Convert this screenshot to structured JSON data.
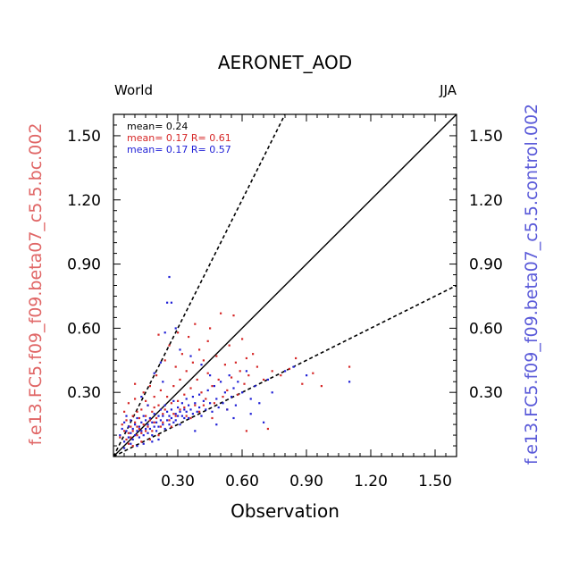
{
  "chart_data": {
    "type": "scatter",
    "title": "AERONET_AOD",
    "subtitle_left": "World",
    "subtitle_right": "JJA",
    "xlabel": "Observation",
    "ylabel_left": "f.e13.FC5.f09_f09.beta07_c5.5.bc.002",
    "ylabel_right": "f.e13.FC5.f09_f09.beta07_c5.5.control.002",
    "xlim": [
      0.0,
      1.6
    ],
    "ylim": [
      0.0,
      1.6
    ],
    "xticks": [
      "0.30",
      "0.60",
      "0.90",
      "1.20",
      "1.50"
    ],
    "yticks": [
      "0.30",
      "0.60",
      "0.90",
      "1.20",
      "1.50"
    ],
    "reference_lines": [
      {
        "kind": "1:1",
        "slope": 1.0,
        "style": "solid"
      },
      {
        "kind": "2:1",
        "slope": 2.0,
        "style": "dashed"
      },
      {
        "kind": "1:2",
        "slope": 0.5,
        "style": "dashed"
      }
    ],
    "annotations": [
      {
        "text": "mean= 0.24",
        "color": "#000000"
      },
      {
        "text": "mean= 0.17 R= 0.61",
        "color": "#d62828"
      },
      {
        "text": "mean= 0.17 R= 0.57",
        "color": "#1f1fd6"
      }
    ],
    "series": [
      {
        "color": "#d62828",
        "points": [
          [
            0.03,
            0.09
          ],
          [
            0.04,
            0.15
          ],
          [
            0.05,
            0.12
          ],
          [
            0.05,
            0.21
          ],
          [
            0.06,
            0.08
          ],
          [
            0.06,
            0.17
          ],
          [
            0.07,
            0.11
          ],
          [
            0.07,
            0.25
          ],
          [
            0.08,
            0.14
          ],
          [
            0.08,
            0.09
          ],
          [
            0.09,
            0.19
          ],
          [
            0.09,
            0.12
          ],
          [
            0.1,
            0.16
          ],
          [
            0.1,
            0.27
          ],
          [
            0.11,
            0.1
          ],
          [
            0.11,
            0.14
          ],
          [
            0.12,
            0.18
          ],
          [
            0.12,
            0.13
          ],
          [
            0.13,
            0.22
          ],
          [
            0.13,
            0.11
          ],
          [
            0.14,
            0.15
          ],
          [
            0.14,
            0.3
          ],
          [
            0.15,
            0.12
          ],
          [
            0.15,
            0.19
          ],
          [
            0.16,
            0.24
          ],
          [
            0.16,
            0.14
          ],
          [
            0.17,
            0.17
          ],
          [
            0.17,
            0.33
          ],
          [
            0.18,
            0.12
          ],
          [
            0.18,
            0.21
          ],
          [
            0.19,
            0.28
          ],
          [
            0.19,
            0.16
          ],
          [
            0.2,
            0.38
          ],
          [
            0.2,
            0.18
          ],
          [
            0.21,
            0.24
          ],
          [
            0.22,
            0.14
          ],
          [
            0.22,
            0.31
          ],
          [
            0.23,
            0.2
          ],
          [
            0.24,
            0.45
          ],
          [
            0.24,
            0.22
          ],
          [
            0.25,
            0.28
          ],
          [
            0.26,
            0.17
          ],
          [
            0.26,
            0.52
          ],
          [
            0.27,
            0.25
          ],
          [
            0.28,
            0.33
          ],
          [
            0.28,
            0.2
          ],
          [
            0.29,
            0.42
          ],
          [
            0.3,
            0.26
          ],
          [
            0.31,
            0.36
          ],
          [
            0.31,
            0.22
          ],
          [
            0.32,
            0.48
          ],
          [
            0.33,
            0.29
          ],
          [
            0.34,
            0.4
          ],
          [
            0.34,
            0.19
          ],
          [
            0.35,
            0.56
          ],
          [
            0.36,
            0.32
          ],
          [
            0.37,
            0.44
          ],
          [
            0.38,
            0.24
          ],
          [
            0.39,
            0.36
          ],
          [
            0.4,
            0.5
          ],
          [
            0.4,
            0.21
          ],
          [
            0.41,
            0.3
          ],
          [
            0.42,
            0.45
          ],
          [
            0.43,
            0.27
          ],
          [
            0.44,
            0.39
          ],
          [
            0.45,
            0.6
          ],
          [
            0.46,
            0.33
          ],
          [
            0.47,
            0.25
          ],
          [
            0.48,
            0.47
          ],
          [
            0.49,
            0.36
          ],
          [
            0.5,
            0.67
          ],
          [
            0.51,
            0.28
          ],
          [
            0.52,
            0.43
          ],
          [
            0.53,
            0.31
          ],
          [
            0.54,
            0.52
          ],
          [
            0.55,
            0.37
          ],
          [
            0.56,
            0.66
          ],
          [
            0.57,
            0.44
          ],
          [
            0.58,
            0.29
          ],
          [
            0.59,
            0.4
          ],
          [
            0.6,
            0.55
          ],
          [
            0.61,
            0.34
          ],
          [
            0.62,
            0.46
          ],
          [
            0.63,
            0.38
          ],
          [
            0.65,
            0.48
          ],
          [
            0.67,
            0.42
          ],
          [
            0.7,
            0.36
          ],
          [
            0.72,
            0.13
          ],
          [
            0.74,
            0.4
          ],
          [
            0.78,
            0.38
          ],
          [
            0.82,
            0.41
          ],
          [
            0.85,
            0.46
          ],
          [
            0.88,
            0.34
          ],
          [
            0.93,
            0.39
          ],
          [
            0.97,
            0.33
          ],
          [
            1.1,
            0.42
          ],
          [
            0.07,
            0.06
          ],
          [
            0.09,
            0.05
          ],
          [
            0.13,
            0.07
          ],
          [
            0.17,
            0.08
          ],
          [
            0.21,
            0.1
          ],
          [
            0.11,
            0.21
          ],
          [
            0.15,
            0.26
          ],
          [
            0.19,
            0.23
          ],
          [
            0.23,
            0.16
          ],
          [
            0.27,
            0.14
          ],
          [
            0.29,
            0.19
          ],
          [
            0.33,
            0.23
          ],
          [
            0.36,
            0.18
          ],
          [
            0.42,
            0.24
          ],
          [
            0.46,
            0.18
          ],
          [
            0.53,
            0.22
          ],
          [
            0.1,
            0.34
          ],
          [
            0.21,
            0.57
          ],
          [
            0.3,
            0.58
          ],
          [
            0.38,
            0.62
          ],
          [
            0.44,
            0.54
          ],
          [
            0.62,
            0.12
          ]
        ]
      },
      {
        "color": "#1f1fd6",
        "points": [
          [
            0.03,
            0.1
          ],
          [
            0.04,
            0.13
          ],
          [
            0.05,
            0.07
          ],
          [
            0.05,
            0.16
          ],
          [
            0.06,
            0.12
          ],
          [
            0.06,
            0.19
          ],
          [
            0.07,
            0.09
          ],
          [
            0.07,
            0.14
          ],
          [
            0.08,
            0.11
          ],
          [
            0.08,
            0.17
          ],
          [
            0.09,
            0.08
          ],
          [
            0.09,
            0.13
          ],
          [
            0.1,
            0.1
          ],
          [
            0.1,
            0.15
          ],
          [
            0.11,
            0.12
          ],
          [
            0.11,
            0.18
          ],
          [
            0.12,
            0.09
          ],
          [
            0.12,
            0.14
          ],
          [
            0.13,
            0.16
          ],
          [
            0.13,
            0.12
          ],
          [
            0.14,
            0.1
          ],
          [
            0.14,
            0.19
          ],
          [
            0.15,
            0.13
          ],
          [
            0.15,
            0.17
          ],
          [
            0.16,
            0.11
          ],
          [
            0.16,
            0.15
          ],
          [
            0.17,
            0.18
          ],
          [
            0.17,
            0.13
          ],
          [
            0.18,
            0.16
          ],
          [
            0.18,
            0.1
          ],
          [
            0.19,
            0.14
          ],
          [
            0.19,
            0.2
          ],
          [
            0.2,
            0.12
          ],
          [
            0.2,
            0.16
          ],
          [
            0.21,
            0.19
          ],
          [
            0.21,
            0.14
          ],
          [
            0.22,
            0.17
          ],
          [
            0.22,
            0.22
          ],
          [
            0.23,
            0.15
          ],
          [
            0.23,
            0.19
          ],
          [
            0.24,
            0.13
          ],
          [
            0.24,
            0.24
          ],
          [
            0.25,
            0.17
          ],
          [
            0.25,
            0.21
          ],
          [
            0.26,
            0.19
          ],
          [
            0.26,
            0.15
          ],
          [
            0.27,
            0.22
          ],
          [
            0.27,
            0.18
          ],
          [
            0.28,
            0.16
          ],
          [
            0.28,
            0.26
          ],
          [
            0.29,
            0.2
          ],
          [
            0.29,
            0.17
          ],
          [
            0.3,
            0.23
          ],
          [
            0.3,
            0.19
          ],
          [
            0.31,
            0.21
          ],
          [
            0.31,
            0.15
          ],
          [
            0.32,
            0.25
          ],
          [
            0.32,
            0.19
          ],
          [
            0.33,
            0.22
          ],
          [
            0.33,
            0.18
          ],
          [
            0.34,
            0.27
          ],
          [
            0.34,
            0.21
          ],
          [
            0.35,
            0.24
          ],
          [
            0.35,
            0.18
          ],
          [
            0.36,
            0.22
          ],
          [
            0.37,
            0.28
          ],
          [
            0.37,
            0.2
          ],
          [
            0.38,
            0.25
          ],
          [
            0.39,
            0.21
          ],
          [
            0.4,
            0.29
          ],
          [
            0.4,
            0.23
          ],
          [
            0.41,
            0.19
          ],
          [
            0.42,
            0.26
          ],
          [
            0.43,
            0.22
          ],
          [
            0.44,
            0.31
          ],
          [
            0.45,
            0.25
          ],
          [
            0.46,
            0.21
          ],
          [
            0.47,
            0.33
          ],
          [
            0.48,
            0.27
          ],
          [
            0.49,
            0.23
          ],
          [
            0.5,
            0.35
          ],
          [
            0.51,
            0.25
          ],
          [
            0.52,
            0.3
          ],
          [
            0.53,
            0.22
          ],
          [
            0.54,
            0.38
          ],
          [
            0.55,
            0.28
          ],
          [
            0.56,
            0.32
          ],
          [
            0.57,
            0.24
          ],
          [
            0.58,
            0.35
          ],
          [
            0.6,
            0.3
          ],
          [
            0.62,
            0.4
          ],
          [
            0.64,
            0.27
          ],
          [
            0.66,
            0.33
          ],
          [
            0.68,
            0.25
          ],
          [
            0.72,
            0.36
          ],
          [
            0.74,
            0.3
          ],
          [
            0.8,
            0.4
          ],
          [
            0.84,
            0.42
          ],
          [
            0.9,
            0.38
          ],
          [
            1.1,
            0.35
          ],
          [
            0.26,
            0.84
          ],
          [
            0.25,
            0.72
          ],
          [
            0.27,
            0.72
          ],
          [
            0.24,
            0.58
          ],
          [
            0.29,
            0.6
          ],
          [
            0.31,
            0.5
          ],
          [
            0.22,
            0.44
          ],
          [
            0.19,
            0.39
          ],
          [
            0.23,
            0.35
          ],
          [
            0.36,
            0.47
          ],
          [
            0.41,
            0.43
          ],
          [
            0.45,
            0.38
          ],
          [
            0.08,
            0.06
          ],
          [
            0.11,
            0.05
          ],
          [
            0.14,
            0.06
          ],
          [
            0.18,
            0.07
          ],
          [
            0.21,
            0.08
          ],
          [
            0.05,
            0.04
          ],
          [
            0.16,
            0.24
          ],
          [
            0.13,
            0.28
          ],
          [
            0.38,
            0.12
          ],
          [
            0.48,
            0.15
          ],
          [
            0.56,
            0.18
          ],
          [
            0.64,
            0.2
          ],
          [
            0.7,
            0.16
          ]
        ]
      }
    ]
  }
}
